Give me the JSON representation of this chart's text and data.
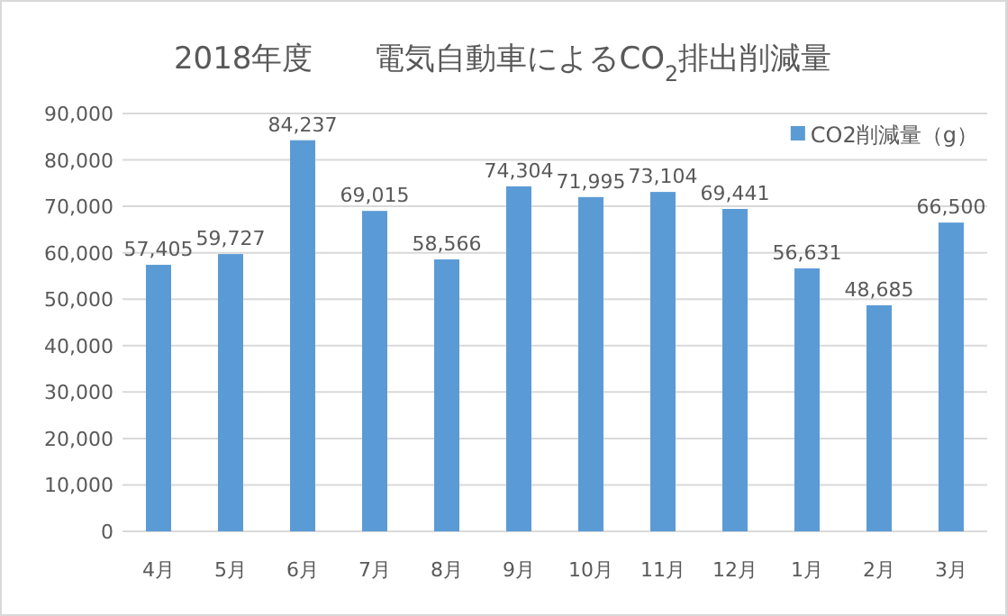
{
  "chart_data": {
    "type": "bar",
    "title": "2018年度　　電気自動車によるCO$_{2}$排出削減量",
    "categories": [
      "4月",
      "5月",
      "6月",
      "7月",
      "8月",
      "9月",
      "10月",
      "11月",
      "12月",
      "1月",
      "2月",
      "3月"
    ],
    "series": [
      {
        "name": "CO2削減量（g）",
        "color": "#5b9bd5",
        "values": [
          57405,
          59727,
          84237,
          69015,
          58566,
          74304,
          71995,
          73104,
          69441,
          56631,
          48685,
          66500
        ],
        "value_labels": [
          "57,405",
          "59,727",
          "84,237",
          "69,015",
          "58,566",
          "74,304",
          "71,995",
          "73,104",
          "69,441",
          "56,631",
          "48,685",
          "66,500"
        ]
      }
    ],
    "ylim": [
      0,
      90000
    ],
    "yticks": [
      0,
      {
        "value": 10000,
        "label": "10,000"
      },
      {
        "value": 20000,
        "label": "20,000"
      },
      {
        "value": 30000,
        "label": "30,000"
      },
      {
        "value": 40000,
        "label": "40,000"
      },
      {
        "value": 50000,
        "label": "50,000"
      },
      {
        "value": 60000,
        "label": "60,000"
      },
      {
        "value": 70000,
        "label": "70,000"
      },
      {
        "value": 80000,
        "label": "80,000"
      },
      {
        "value": 90000,
        "label": "90,000"
      }
    ],
    "grid": "y",
    "legend": "top right"
  }
}
